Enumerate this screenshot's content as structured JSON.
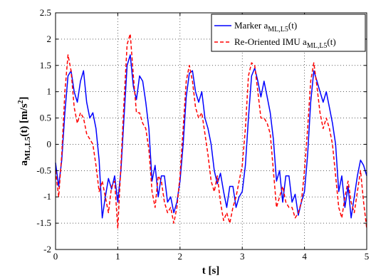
{
  "chart_data": {
    "type": "line",
    "xlabel": "t [s]",
    "ylabel_main": "a",
    "ylabel_sub": "ML,L5",
    "ylabel_rest": "(t) [m/s",
    "ylabel_sup": "2",
    "ylabel_end": "]",
    "xlim": [
      0,
      5
    ],
    "ylim": [
      -2,
      2.5
    ],
    "xticks": [
      "0",
      "1",
      "2",
      "3",
      "4",
      "5"
    ],
    "yticks": [
      "-2",
      "-1.5",
      "-1",
      "-0.5",
      "0",
      "0.5",
      "1",
      "1.5",
      "2",
      "2.5"
    ],
    "grid": true,
    "legend_position": "top-right",
    "series": [
      {
        "name": "Marker a(t)",
        "legend_main": "Marker a",
        "legend_sub": "ML,L5",
        "legend_end": "(t)",
        "color": "#0000ff",
        "dash": "solid",
        "x": [
          0,
          0.05,
          0.1,
          0.15,
          0.2,
          0.25,
          0.3,
          0.35,
          0.4,
          0.45,
          0.5,
          0.55,
          0.6,
          0.65,
          0.7,
          0.75,
          0.8,
          0.85,
          0.9,
          0.95,
          1.0,
          1.05,
          1.1,
          1.15,
          1.2,
          1.25,
          1.3,
          1.35,
          1.4,
          1.45,
          1.5,
          1.55,
          1.6,
          1.65,
          1.7,
          1.75,
          1.8,
          1.85,
          1.9,
          1.95,
          2.0,
          2.05,
          2.1,
          2.15,
          2.2,
          2.25,
          2.3,
          2.35,
          2.4,
          2.45,
          2.5,
          2.55,
          2.6,
          2.65,
          2.7,
          2.75,
          2.8,
          2.85,
          2.9,
          2.95,
          3.0,
          3.05,
          3.1,
          3.15,
          3.2,
          3.25,
          3.3,
          3.35,
          3.4,
          3.45,
          3.5,
          3.55,
          3.6,
          3.65,
          3.7,
          3.75,
          3.8,
          3.85,
          3.9,
          3.95,
          4.0,
          4.05,
          4.1,
          4.15,
          4.2,
          4.25,
          4.3,
          4.35,
          4.4,
          4.45,
          4.5,
          4.55,
          4.6,
          4.65,
          4.7,
          4.75,
          4.8,
          4.85,
          4.9,
          4.95,
          5.0
        ],
        "y": [
          -0.35,
          -0.8,
          -0.3,
          0.6,
          1.3,
          1.4,
          1.0,
          0.8,
          1.2,
          1.4,
          0.8,
          0.5,
          0.6,
          0.3,
          -0.3,
          -1.4,
          -1.0,
          -0.65,
          -0.85,
          -0.6,
          -1.1,
          -0.5,
          0.5,
          1.5,
          1.7,
          1.1,
          0.85,
          1.3,
          1.2,
          0.8,
          0.3,
          -0.7,
          -0.4,
          -1.0,
          -0.6,
          -0.6,
          -1.1,
          -1.0,
          -1.3,
          -1.1,
          -0.7,
          0.0,
          0.9,
          1.35,
          1.4,
          1.0,
          0.8,
          1.0,
          0.5,
          0.3,
          0.0,
          -0.5,
          -0.75,
          -0.55,
          -0.9,
          -1.2,
          -0.8,
          -0.8,
          -1.2,
          -1.0,
          -0.9,
          -0.4,
          0.5,
          1.3,
          1.45,
          1.2,
          0.9,
          1.2,
          0.9,
          0.6,
          0.1,
          -0.7,
          -0.5,
          -1.1,
          -0.6,
          -0.6,
          -1.1,
          -0.95,
          -1.35,
          -1.1,
          -0.9,
          -0.2,
          0.8,
          1.4,
          1.2,
          1.0,
          0.8,
          1.0,
          0.7,
          0.4,
          0.0,
          -0.9,
          -0.6,
          -1.2,
          -0.8,
          -1.4,
          -1.0,
          -0.6,
          -0.3,
          -0.4,
          -0.6
        ]
      },
      {
        "name": "Re-Oriented IMU a(t)",
        "legend_main": "Re-Oriented IMU a",
        "legend_sub": "ML,L5",
        "legend_end": "(t)",
        "color": "#ff0000",
        "dash": "dashed",
        "x": [
          0,
          0.05,
          0.1,
          0.15,
          0.2,
          0.25,
          0.3,
          0.35,
          0.4,
          0.45,
          0.5,
          0.55,
          0.6,
          0.65,
          0.7,
          0.75,
          0.8,
          0.85,
          0.9,
          0.95,
          1.0,
          1.05,
          1.1,
          1.15,
          1.2,
          1.25,
          1.3,
          1.35,
          1.4,
          1.45,
          1.5,
          1.55,
          1.6,
          1.65,
          1.7,
          1.75,
          1.8,
          1.85,
          1.9,
          1.95,
          2.0,
          2.05,
          2.1,
          2.15,
          2.2,
          2.25,
          2.3,
          2.35,
          2.4,
          2.45,
          2.5,
          2.55,
          2.6,
          2.65,
          2.7,
          2.75,
          2.8,
          2.85,
          2.9,
          2.95,
          3.0,
          3.05,
          3.1,
          3.15,
          3.2,
          3.25,
          3.3,
          3.35,
          3.4,
          3.45,
          3.5,
          3.55,
          3.6,
          3.65,
          3.7,
          3.75,
          3.8,
          3.85,
          3.9,
          3.95,
          4.0,
          4.05,
          4.1,
          4.15,
          4.2,
          4.25,
          4.3,
          4.35,
          4.4,
          4.45,
          4.5,
          4.55,
          4.6,
          4.65,
          4.7,
          4.75,
          4.8,
          4.85,
          4.9,
          4.95,
          5.0
        ],
        "y": [
          -0.5,
          -1.0,
          -0.2,
          1.0,
          1.7,
          1.4,
          0.7,
          0.4,
          0.6,
          0.5,
          0.2,
          0.1,
          0.0,
          -0.4,
          -0.9,
          -0.7,
          -1.0,
          -1.3,
          -0.8,
          -0.7,
          -1.6,
          -0.4,
          0.8,
          1.9,
          2.1,
          1.3,
          0.6,
          0.6,
          0.4,
          0.3,
          -0.1,
          -0.9,
          -1.2,
          -0.6,
          -0.7,
          -1.1,
          -1.3,
          -1.2,
          -1.5,
          -1.2,
          -0.6,
          0.3,
          1.2,
          1.5,
          1.2,
          0.7,
          0.5,
          0.6,
          0.2,
          -0.2,
          -0.7,
          -0.9,
          -0.6,
          -1.1,
          -1.45,
          -1.3,
          -1.5,
          -1.2,
          -1.0,
          -0.7,
          -0.4,
          0.3,
          1.3,
          1.55,
          1.5,
          1.0,
          0.5,
          0.5,
          0.4,
          0.2,
          -0.5,
          -1.2,
          -1.0,
          -0.8,
          -1.1,
          -1.2,
          -1.2,
          -1.4,
          -1.3,
          -1.1,
          -0.5,
          0.3,
          1.2,
          1.55,
          1.1,
          0.6,
          0.3,
          0.5,
          0.3,
          0.0,
          -0.6,
          -1.2,
          -1.4,
          -1.0,
          -0.7,
          -1.1,
          -1.3,
          -0.9,
          -0.5,
          -1.1,
          -1.6
        ]
      }
    ]
  }
}
